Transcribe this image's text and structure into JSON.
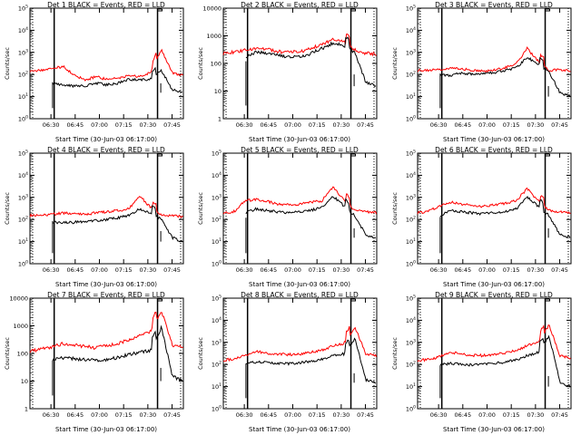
{
  "x_tick_labels": [
    "06:30",
    "06:45",
    "07:00",
    "07:15",
    "07:30",
    "07:45"
  ],
  "x_label": "Start Time (30-Jun-03 06:17:00)",
  "y_label": "Counts/sec",
  "colors": {
    "events": "#000000",
    "lld": "#ff0000",
    "axis": "#000000"
  },
  "chart_data": [
    {
      "type": "line",
      "title": "Det 1 BLACK = Events, RED = LLD",
      "tick_style": "exp",
      "ylim": [
        1,
        100000
      ],
      "yticks": [
        1,
        10,
        100,
        1000,
        10000,
        100000
      ],
      "ytick_labels": [
        "10^0",
        "10^1",
        "10^2",
        "10^3",
        "10^4",
        "10^5"
      ],
      "xlim": [
        "06:17",
        "07:52"
      ],
      "vlines": [
        "06:32",
        "07:36"
      ],
      "flare_peak": "07:34",
      "series": [
        {
          "name": "Events",
          "values": [
            40,
            45,
            40,
            35,
            30,
            30,
            40,
            35,
            40,
            60,
            55,
            60,
            150,
            20,
            15
          ]
        },
        {
          "name": "LLD",
          "values": [
            150,
            160,
            180,
            230,
            100,
            55,
            80,
            60,
            70,
            90,
            80,
            120,
            1300,
            120,
            90
          ]
        }
      ]
    },
    {
      "type": "line",
      "title": "Det 2 BLACK = Events, RED = LLD",
      "tick_style": "plain",
      "ylim": [
        1,
        10000
      ],
      "yticks": [
        1,
        10,
        100,
        1000,
        10000
      ],
      "ytick_labels": [
        "1",
        "10",
        "100",
        "1000",
        "10000"
      ],
      "xlim": [
        "06:17",
        "07:52"
      ],
      "vlines": [
        "06:32",
        "07:36"
      ],
      "flare_peak": "07:34",
      "series": [
        {
          "name": "Events",
          "values": [
            100,
            120,
            180,
            250,
            240,
            200,
            170,
            180,
            230,
            350,
            550,
            450,
            250,
            20,
            15
          ]
        },
        {
          "name": "LLD",
          "values": [
            230,
            260,
            300,
            360,
            330,
            270,
            250,
            270,
            340,
            500,
            760,
            600,
            300,
            230,
            220
          ]
        }
      ]
    },
    {
      "type": "line",
      "title": "Det 3 BLACK = Events, RED = LLD",
      "tick_style": "exp",
      "ylim": [
        1,
        100000
      ],
      "yticks": [
        1,
        10,
        100,
        1000,
        10000,
        100000
      ],
      "ytick_labels": [
        "10^0",
        "10^1",
        "10^2",
        "10^3",
        "10^4",
        "10^5"
      ],
      "xlim": [
        "06:17",
        "07:52"
      ],
      "vlines": [
        "06:32",
        "07:36"
      ],
      "flare_peak": "07:34",
      "series": [
        {
          "name": "Events",
          "values": [
            120,
            110,
            100,
            90,
            120,
            100,
            110,
            120,
            150,
            200,
            600,
            300,
            130,
            15,
            10
          ]
        },
        {
          "name": "LLD",
          "values": [
            150,
            160,
            170,
            200,
            180,
            150,
            140,
            160,
            200,
            300,
            1500,
            400,
            150,
            160,
            140
          ]
        }
      ]
    },
    {
      "type": "line",
      "title": "Det 4 BLACK = Events, RED = LLD",
      "tick_style": "exp",
      "ylim": [
        1,
        100000
      ],
      "yticks": [
        1,
        10,
        100,
        1000,
        10000,
        100000
      ],
      "ytick_labels": [
        "10^0",
        "10^1",
        "10^2",
        "10^3",
        "10^4",
        "10^5"
      ],
      "xlim": [
        "06:17",
        "07:52"
      ],
      "vlines": [
        "06:32",
        "07:36"
      ],
      "flare_peak": "07:34",
      "series": [
        {
          "name": "Events",
          "values": [
            80,
            85,
            80,
            70,
            75,
            80,
            90,
            100,
            120,
            150,
            300,
            200,
            100,
            15,
            10
          ]
        },
        {
          "name": "LLD",
          "values": [
            150,
            160,
            170,
            200,
            180,
            170,
            200,
            220,
            250,
            300,
            1200,
            350,
            150,
            160,
            130
          ]
        }
      ]
    },
    {
      "type": "line",
      "title": "Det 5 BLACK = Events, RED = LLD",
      "tick_style": "exp",
      "ylim": [
        1,
        100000
      ],
      "yticks": [
        1,
        10,
        100,
        1000,
        10000,
        100000
      ],
      "ytick_labels": [
        "10^0",
        "10^1",
        "10^2",
        "10^3",
        "10^4",
        "10^5"
      ],
      "xlim": [
        "06:17",
        "07:52"
      ],
      "vlines": [
        "06:32",
        "07:36"
      ],
      "flare_peak": "07:34",
      "series": [
        {
          "name": "Events",
          "values": [
            100,
            120,
            200,
            300,
            250,
            220,
            200,
            230,
            260,
            350,
            1200,
            400,
            150,
            20,
            15
          ]
        },
        {
          "name": "LLD",
          "values": [
            200,
            230,
            700,
            800,
            650,
            500,
            450,
            500,
            600,
            700,
            3000,
            800,
            250,
            230,
            200
          ]
        }
      ]
    },
    {
      "type": "line",
      "title": "Det 6 BLACK = Events, RED = LLD",
      "tick_style": "exp",
      "ylim": [
        1,
        100000
      ],
      "yticks": [
        1,
        10,
        100,
        1000,
        10000,
        100000
      ],
      "ytick_labels": [
        "10^0",
        "10^1",
        "10^2",
        "10^3",
        "10^4",
        "10^5"
      ],
      "xlim": [
        "06:17",
        "07:52"
      ],
      "vlines": [
        "06:32",
        "07:36"
      ],
      "flare_peak": "07:34",
      "series": [
        {
          "name": "Events",
          "values": [
            120,
            130,
            150,
            250,
            220,
            200,
            180,
            200,
            230,
            300,
            1000,
            400,
            150,
            20,
            15
          ]
        },
        {
          "name": "LLD",
          "values": [
            200,
            230,
            400,
            600,
            500,
            450,
            400,
            450,
            550,
            700,
            2500,
            700,
            250,
            230,
            200
          ]
        }
      ]
    },
    {
      "type": "line",
      "title": "Det 7 BLACK = Events, RED = LLD",
      "tick_style": "plain",
      "ylim": [
        1,
        10000
      ],
      "yticks": [
        1,
        10,
        100,
        1000,
        10000
      ],
      "ytick_labels": [
        "1",
        "10",
        "100",
        "1000",
        "10000"
      ],
      "xlim": [
        "06:17",
        "07:52"
      ],
      "vlines": [
        "06:32",
        "07:36"
      ],
      "flare_peak": "07:34",
      "series": [
        {
          "name": "Events",
          "values": [
            50,
            55,
            60,
            70,
            65,
            60,
            55,
            60,
            70,
            90,
            110,
            130,
            900,
            15,
            10
          ]
        },
        {
          "name": "LLD",
          "values": [
            120,
            140,
            170,
            230,
            200,
            180,
            160,
            190,
            230,
            300,
            420,
            600,
            3500,
            200,
            160
          ]
        }
      ]
    },
    {
      "type": "line",
      "title": "Det 8 BLACK = Events, RED = LLD",
      "tick_style": "exp",
      "ylim": [
        1,
        100000
      ],
      "yticks": [
        1,
        10,
        100,
        1000,
        10000,
        100000
      ],
      "ytick_labels": [
        "10^0",
        "10^1",
        "10^2",
        "10^3",
        "10^4",
        "10^5"
      ],
      "xlim": [
        "06:17",
        "07:52"
      ],
      "vlines": [
        "06:32",
        "07:36"
      ],
      "flare_peak": "07:34",
      "series": [
        {
          "name": "Events",
          "values": [
            100,
            110,
            120,
            130,
            120,
            110,
            110,
            120,
            140,
            170,
            250,
            300,
            1500,
            20,
            15
          ]
        },
        {
          "name": "LLD",
          "values": [
            160,
            180,
            250,
            400,
            320,
            300,
            280,
            300,
            350,
            450,
            700,
            900,
            5000,
            300,
            250
          ]
        }
      ]
    },
    {
      "type": "line",
      "title": "Det 9 BLACK = Events, RED = LLD",
      "tick_style": "exp",
      "ylim": [
        1,
        100000
      ],
      "yticks": [
        1,
        10,
        100,
        1000,
        10000,
        100000
      ],
      "ytick_labels": [
        "10^0",
        "10^1",
        "10^2",
        "10^3",
        "10^4",
        "10^5"
      ],
      "xlim": [
        "06:17",
        "07:52"
      ],
      "vlines": [
        "06:32",
        "07:36"
      ],
      "flare_peak": "07:34",
      "series": [
        {
          "name": "Events",
          "values": [
            80,
            90,
            100,
            110,
            100,
            95,
            100,
            110,
            130,
            160,
            250,
            350,
            2000,
            15,
            10
          ]
        },
        {
          "name": "LLD",
          "values": [
            150,
            170,
            220,
            350,
            300,
            260,
            250,
            280,
            330,
            420,
            700,
            1000,
            6000,
            250,
            200
          ]
        }
      ]
    }
  ]
}
